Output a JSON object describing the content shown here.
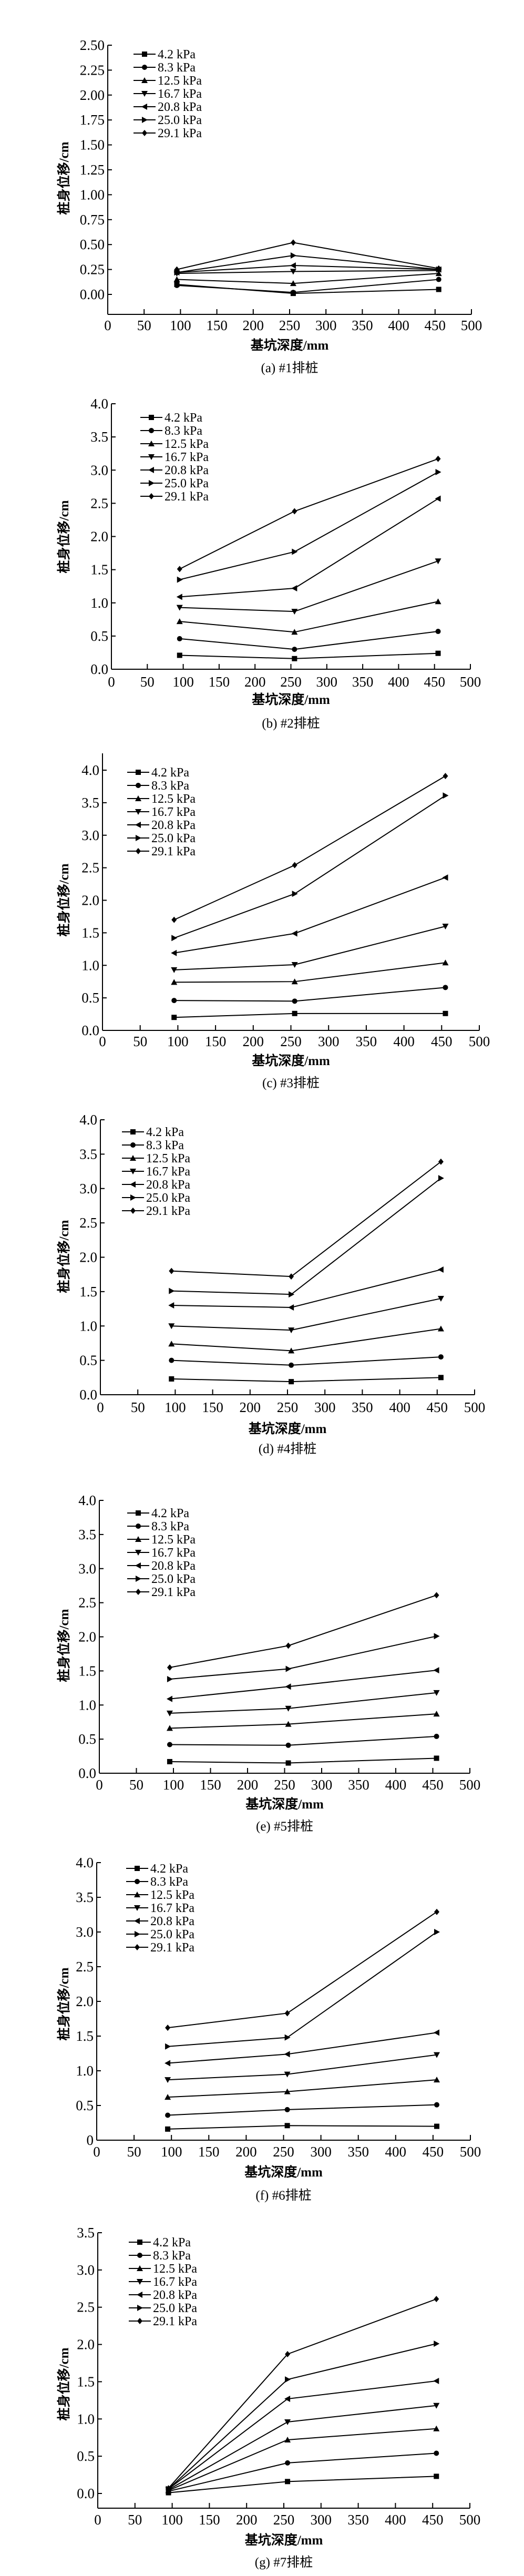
{
  "chart_data": [
    {
      "type": "line",
      "caption": "(a) #1排桩",
      "xlabel": "基坑深度/mm",
      "ylabel": "桩身位移/cm",
      "xlim": [
        0,
        500
      ],
      "ylim": [
        -0.2,
        2.5
      ],
      "xticks": [
        "0",
        "50",
        "100",
        "150",
        "200",
        "250",
        "300",
        "350",
        "400",
        "450",
        "500"
      ],
      "yticks": [
        "0.00",
        "0.25",
        "0.50",
        "0.75",
        "1.00",
        "1.25",
        "1.50",
        "1.75",
        "2.00",
        "2.25",
        "2.50"
      ],
      "legend_position": "top-left",
      "x": [
        95,
        255,
        455
      ],
      "series": [
        {
          "name": "4.2 kPa",
          "marker": "square",
          "values": [
            0.1,
            0.01,
            0.05
          ]
        },
        {
          "name": "8.3 kPa",
          "marker": "circle",
          "values": [
            0.09,
            0.02,
            0.15
          ]
        },
        {
          "name": "12.5 kPa",
          "marker": "triangle-up",
          "values": [
            0.15,
            0.11,
            0.21
          ]
        },
        {
          "name": "16.7 kPa",
          "marker": "triangle-down",
          "values": [
            0.21,
            0.23,
            0.24
          ]
        },
        {
          "name": "20.8 kPa",
          "marker": "triangle-left",
          "values": [
            0.22,
            0.29,
            0.25
          ]
        },
        {
          "name": "25.0 kPa",
          "marker": "triangle-right",
          "values": [
            0.22,
            0.39,
            0.25
          ]
        },
        {
          "name": "29.1 kPa",
          "marker": "diamond",
          "values": [
            0.25,
            0.52,
            0.26
          ]
        }
      ]
    },
    {
      "type": "line",
      "caption": "(b) #2排桩",
      "xlabel": "基坑深度/mm",
      "ylabel": "桩身位移/cm",
      "xlim": [
        0,
        500
      ],
      "ylim": [
        0,
        4.0
      ],
      "xticks": [
        "0",
        "50",
        "100",
        "150",
        "200",
        "250",
        "300",
        "350",
        "400",
        "450",
        "500"
      ],
      "yticks": [
        "0.0",
        "0.5",
        "1.0",
        "1.5",
        "2.0",
        "2.5",
        "3.0",
        "3.5",
        "4.0"
      ],
      "legend_position": "top-left",
      "x": [
        95,
        255,
        455
      ],
      "series": [
        {
          "name": "4.2 kPa",
          "marker": "square",
          "values": [
            0.21,
            0.16,
            0.24
          ]
        },
        {
          "name": "8.3 kPa",
          "marker": "circle",
          "values": [
            0.46,
            0.3,
            0.57
          ]
        },
        {
          "name": "12.5 kPa",
          "marker": "triangle-up",
          "values": [
            0.72,
            0.56,
            1.02
          ]
        },
        {
          "name": "16.7 kPa",
          "marker": "triangle-down",
          "values": [
            0.93,
            0.87,
            1.63
          ]
        },
        {
          "name": "20.8 kPa",
          "marker": "triangle-left",
          "values": [
            1.09,
            1.22,
            2.57
          ]
        },
        {
          "name": "25.0 kPa",
          "marker": "triangle-right",
          "values": [
            1.35,
            1.77,
            2.97
          ]
        },
        {
          "name": "29.1 kPa",
          "marker": "diamond",
          "values": [
            1.51,
            2.38,
            3.17
          ]
        }
      ]
    },
    {
      "type": "line",
      "caption": "(c) #3排桩",
      "xlabel": "基坑深度/mm",
      "ylabel": "桩身位移/cm",
      "xlim": [
        0,
        500
      ],
      "ylim": [
        0,
        4.25
      ],
      "xticks": [
        "0",
        "50",
        "100",
        "150",
        "200",
        "250",
        "300",
        "350",
        "400",
        "450",
        "500"
      ],
      "yticks": [
        "0.0",
        "0.5",
        "1.0",
        "1.5",
        "2.0",
        "2.5",
        "3.0",
        "3.5",
        "4.0"
      ],
      "legend_position": "top-left",
      "x": [
        95,
        255,
        455
      ],
      "series": [
        {
          "name": "4.2 kPa",
          "marker": "square",
          "values": [
            0.2,
            0.26,
            0.26
          ]
        },
        {
          "name": "8.3 kPa",
          "marker": "circle",
          "values": [
            0.46,
            0.45,
            0.66
          ]
        },
        {
          "name": "12.5 kPa",
          "marker": "triangle-up",
          "values": [
            0.74,
            0.75,
            1.04
          ]
        },
        {
          "name": "16.7 kPa",
          "marker": "triangle-down",
          "values": [
            0.93,
            1.01,
            1.6
          ]
        },
        {
          "name": "20.8 kPa",
          "marker": "triangle-left",
          "values": [
            1.19,
            1.49,
            2.35
          ]
        },
        {
          "name": "25.0 kPa",
          "marker": "triangle-right",
          "values": [
            1.42,
            2.1,
            3.61
          ]
        },
        {
          "name": "29.1 kPa",
          "marker": "diamond",
          "values": [
            1.7,
            2.54,
            3.91
          ]
        }
      ]
    },
    {
      "type": "line",
      "caption": "(d) #4排桩",
      "xlabel": "基坑深度/mm",
      "ylabel": "桩身位移/cm",
      "xlim": [
        0,
        500
      ],
      "ylim": [
        0,
        4.0
      ],
      "xticks": [
        "0",
        "50",
        "100",
        "150",
        "200",
        "250",
        "300",
        "350",
        "400",
        "450",
        "500"
      ],
      "yticks": [
        "0.0",
        "0.5",
        "1.0",
        "1.5",
        "2.0",
        "2.5",
        "3.0",
        "3.5",
        "4.0"
      ],
      "legend_position": "top-left",
      "x": [
        95,
        255,
        455
      ],
      "series": [
        {
          "name": "4.2 kPa",
          "marker": "square",
          "values": [
            0.23,
            0.19,
            0.25
          ]
        },
        {
          "name": "8.3 kPa",
          "marker": "circle",
          "values": [
            0.5,
            0.43,
            0.55
          ]
        },
        {
          "name": "12.5 kPa",
          "marker": "triangle-up",
          "values": [
            0.74,
            0.64,
            0.96
          ]
        },
        {
          "name": "16.7 kPa",
          "marker": "triangle-down",
          "values": [
            1.0,
            0.94,
            1.4
          ]
        },
        {
          "name": "20.8 kPa",
          "marker": "triangle-left",
          "values": [
            1.3,
            1.27,
            1.82
          ]
        },
        {
          "name": "25.0 kPa",
          "marker": "triangle-right",
          "values": [
            1.51,
            1.46,
            3.15
          ]
        },
        {
          "name": "29.1 kPa",
          "marker": "diamond",
          "values": [
            1.8,
            1.72,
            3.39
          ]
        }
      ]
    },
    {
      "type": "line",
      "caption": "(e) #5排桩",
      "xlabel": "基坑深度/mm",
      "ylabel": "桩身位移/cm",
      "xlim": [
        0,
        500
      ],
      "ylim": [
        0,
        4.0
      ],
      "xticks": [
        "0",
        "50",
        "100",
        "150",
        "200",
        "250",
        "300",
        "350",
        "400",
        "450",
        "500"
      ],
      "yticks": [
        "0.0",
        "0.5",
        "1.0",
        "1.5",
        "2.0",
        "2.5",
        "3.0",
        "3.5",
        "4.0"
      ],
      "legend_position": "top-left",
      "x": [
        95,
        255,
        455
      ],
      "series": [
        {
          "name": "4.2 kPa",
          "marker": "square",
          "values": [
            0.17,
            0.15,
            0.22
          ]
        },
        {
          "name": "8.3 kPa",
          "marker": "circle",
          "values": [
            0.42,
            0.41,
            0.54
          ]
        },
        {
          "name": "12.5 kPa",
          "marker": "triangle-up",
          "values": [
            0.66,
            0.72,
            0.87
          ]
        },
        {
          "name": "16.7 kPa",
          "marker": "triangle-down",
          "values": [
            0.88,
            0.95,
            1.18
          ]
        },
        {
          "name": "20.8 kPa",
          "marker": "triangle-left",
          "values": [
            1.09,
            1.27,
            1.51
          ]
        },
        {
          "name": "25.0 kPa",
          "marker": "triangle-right",
          "values": [
            1.38,
            1.53,
            2.01
          ]
        },
        {
          "name": "29.1 kPa",
          "marker": "diamond",
          "values": [
            1.55,
            1.87,
            2.61
          ]
        }
      ]
    },
    {
      "type": "line",
      "caption": "(f) #6排桩",
      "xlabel": "基坑深度/mm",
      "ylabel": "桩身位移/cm",
      "xlim": [
        0,
        500
      ],
      "ylim": [
        0,
        4.0
      ],
      "xticks": [
        "0",
        "50",
        "100",
        "150",
        "200",
        "250",
        "300",
        "350",
        "400",
        "450",
        "500"
      ],
      "yticks": [
        "0",
        "0.5",
        "1.0",
        "1.5",
        "2.0",
        "2.5",
        "3.0",
        "3.5",
        "4.0"
      ],
      "legend_position": "top-left",
      "x": [
        95,
        255,
        455
      ],
      "series": [
        {
          "name": "4.2 kPa",
          "marker": "square",
          "values": [
            0.16,
            0.21,
            0.2
          ]
        },
        {
          "name": "8.3 kPa",
          "marker": "circle",
          "values": [
            0.36,
            0.44,
            0.51
          ]
        },
        {
          "name": "12.5 kPa",
          "marker": "triangle-up",
          "values": [
            0.62,
            0.7,
            0.87
          ]
        },
        {
          "name": "16.7 kPa",
          "marker": "triangle-down",
          "values": [
            0.87,
            0.95,
            1.23
          ]
        },
        {
          "name": "20.8 kPa",
          "marker": "triangle-left",
          "values": [
            1.11,
            1.24,
            1.55
          ]
        },
        {
          "name": "25.0 kPa",
          "marker": "triangle-right",
          "values": [
            1.35,
            1.48,
            3.0
          ]
        },
        {
          "name": "29.1 kPa",
          "marker": "diamond",
          "values": [
            1.62,
            1.83,
            3.29
          ]
        }
      ]
    },
    {
      "type": "line",
      "caption": "(g) #7排桩",
      "xlabel": "基坑深度/mm",
      "ylabel": "桩身位移/cm",
      "xlim": [
        0,
        500
      ],
      "ylim": [
        -0.2,
        3.5
      ],
      "xticks": [
        "0",
        "50",
        "100",
        "150",
        "200",
        "250",
        "300",
        "350",
        "400",
        "450",
        "500"
      ],
      "yticks": [
        "0.0",
        "0.5",
        "1.0",
        "1.5",
        "2.0",
        "2.5",
        "3.0",
        "3.5"
      ],
      "legend_position": "top-left",
      "x": [
        95,
        255,
        455
      ],
      "series": [
        {
          "name": "4.2 kPa",
          "marker": "square",
          "values": [
            0.01,
            0.16,
            0.23
          ]
        },
        {
          "name": "8.3 kPa",
          "marker": "circle",
          "values": [
            0.03,
            0.41,
            0.54
          ]
        },
        {
          "name": "12.5 kPa",
          "marker": "triangle-up",
          "values": [
            0.04,
            0.72,
            0.87
          ]
        },
        {
          "name": "16.7 kPa",
          "marker": "triangle-down",
          "values": [
            0.05,
            0.96,
            1.18
          ]
        },
        {
          "name": "20.8 kPa",
          "marker": "triangle-left",
          "values": [
            0.06,
            1.27,
            1.51
          ]
        },
        {
          "name": "25.0 kPa",
          "marker": "triangle-right",
          "values": [
            0.06,
            1.53,
            2.01
          ]
        },
        {
          "name": "29.1 kPa",
          "marker": "diamond",
          "values": [
            0.07,
            1.87,
            2.61
          ]
        }
      ]
    }
  ]
}
